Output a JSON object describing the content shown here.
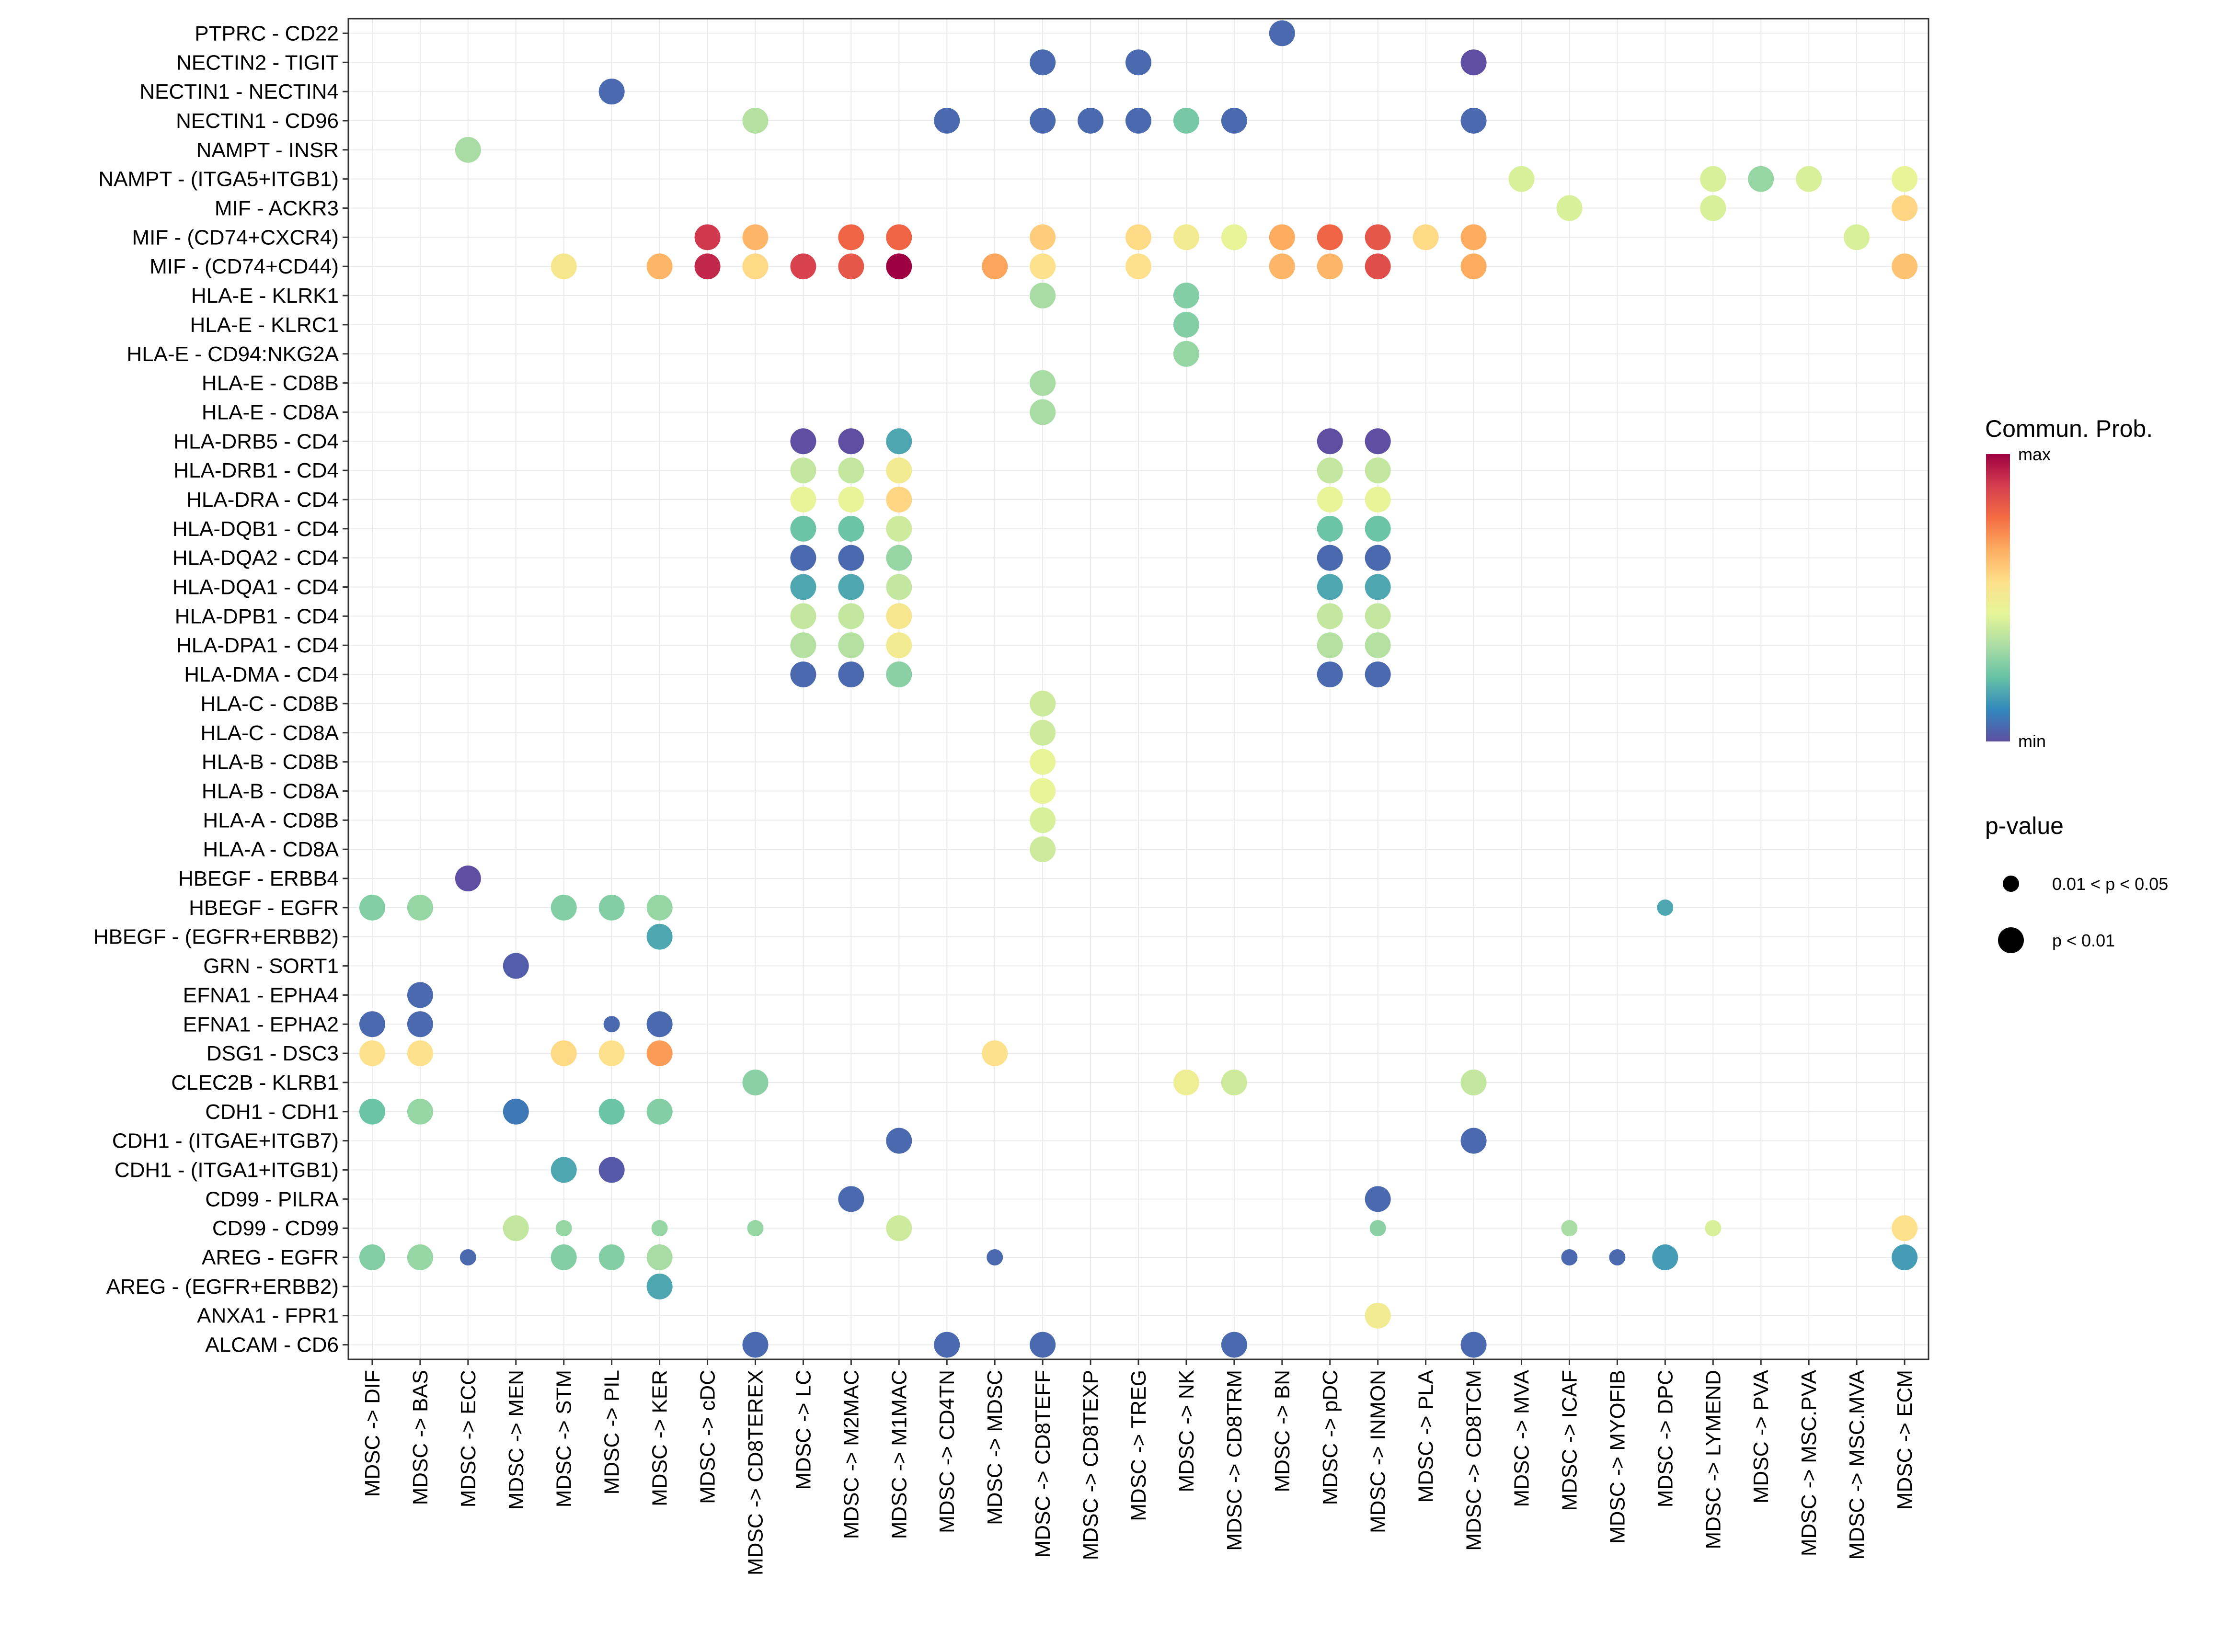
{
  "chart_data": {
    "type": "scatter",
    "subtype": "dot-matrix",
    "title": "",
    "xlabel": "",
    "ylabel": "",
    "grid": true,
    "x_categories": [
      "MDSC -> DIF",
      "MDSC -> BAS",
      "MDSC -> ECC",
      "MDSC -> MEN",
      "MDSC -> STM",
      "MDSC -> PIL",
      "MDSC -> KER",
      "MDSC -> cDC",
      "MDSC -> CD8TEREX",
      "MDSC -> LC",
      "MDSC -> M2MAC",
      "MDSC -> M1MAC",
      "MDSC -> CD4TN",
      "MDSC -> MDSC",
      "MDSC -> CD8TEFF",
      "MDSC -> CD8TEXP",
      "MDSC -> TREG",
      "MDSC -> NK",
      "MDSC -> CD8TRM",
      "MDSC -> BN",
      "MDSC -> pDC",
      "MDSC -> INMON",
      "MDSC -> PLA",
      "MDSC -> CD8TCM",
      "MDSC -> MVA",
      "MDSC -> ICAF",
      "MDSC -> MYOFIB",
      "MDSC -> DPC",
      "MDSC -> LYMEND",
      "MDSC -> PVA",
      "MDSC -> MSC.PVA",
      "MDSC -> MSC.MVA",
      "MDSC -> ECM"
    ],
    "y_categories": [
      "PTPRC - CD22",
      "NECTIN2 - TIGIT",
      "NECTIN1 - NECTIN4",
      "NECTIN1 - CD96",
      "NAMPT - INSR",
      "NAMPT - (ITGA5+ITGB1)",
      "MIF - ACKR3",
      "MIF - (CD74+CXCR4)",
      "MIF - (CD74+CD44)",
      "HLA-E - KLRK1",
      "HLA-E - KLRC1",
      "HLA-E - CD94:NKG2A",
      "HLA-E - CD8B",
      "HLA-E - CD8A",
      "HLA-DRB5 - CD4",
      "HLA-DRB1 - CD4",
      "HLA-DRA - CD4",
      "HLA-DQB1 - CD4",
      "HLA-DQA2 - CD4",
      "HLA-DQA1 - CD4",
      "HLA-DPB1 - CD4",
      "HLA-DPA1 - CD4",
      "HLA-DMA - CD4",
      "HLA-C - CD8B",
      "HLA-C - CD8A",
      "HLA-B - CD8B",
      "HLA-B - CD8A",
      "HLA-A - CD8B",
      "HLA-A - CD8A",
      "HBEGF - ERBB4",
      "HBEGF - EGFR",
      "HBEGF - (EGFR+ERBB2)",
      "GRN - SORT1",
      "EFNA1 - EPHA4",
      "EFNA1 - EPHA2",
      "DSG1 - DSC3",
      "CLEC2B - KLRB1",
      "CDH1 - CDH1",
      "CDH1 - (ITGAE+ITGB7)",
      "CDH1 - (ITGA1+ITGB1)",
      "CD99 - PILRA",
      "CD99 - CD99",
      "AREG - EGFR",
      "AREG - (EGFR+ERBB2)",
      "ANXA1 - FPR1",
      "ALCAM - CD6"
    ],
    "point_fields": [
      "x_index",
      "y_index",
      "commun_prob_scaled",
      "pvalue_class"
    ],
    "points": [
      [
        19,
        0,
        0.05,
        1
      ],
      [
        14,
        1,
        0.05,
        1
      ],
      [
        16,
        1,
        0.05,
        1
      ],
      [
        23,
        1,
        0.0,
        1
      ],
      [
        5,
        2,
        0.05,
        1
      ],
      [
        8,
        3,
        0.35,
        1
      ],
      [
        12,
        3,
        0.05,
        1
      ],
      [
        14,
        3,
        0.05,
        1
      ],
      [
        15,
        3,
        0.05,
        1
      ],
      [
        16,
        3,
        0.05,
        1
      ],
      [
        17,
        3,
        0.25,
        1
      ],
      [
        18,
        3,
        0.05,
        1
      ],
      [
        23,
        3,
        0.05,
        1
      ],
      [
        2,
        4,
        0.33,
        1
      ],
      [
        24,
        5,
        0.42,
        1
      ],
      [
        28,
        5,
        0.42,
        1
      ],
      [
        29,
        5,
        0.3,
        1
      ],
      [
        30,
        5,
        0.42,
        1
      ],
      [
        32,
        5,
        0.45,
        1
      ],
      [
        25,
        6,
        0.42,
        1
      ],
      [
        28,
        6,
        0.42,
        1
      ],
      [
        32,
        6,
        0.58,
        1
      ],
      [
        7,
        7,
        0.9,
        1
      ],
      [
        8,
        7,
        0.65,
        1
      ],
      [
        10,
        7,
        0.8,
        1
      ],
      [
        11,
        7,
        0.8,
        1
      ],
      [
        14,
        7,
        0.6,
        1
      ],
      [
        16,
        7,
        0.57,
        1
      ],
      [
        17,
        7,
        0.5,
        1
      ],
      [
        18,
        7,
        0.45,
        1
      ],
      [
        19,
        7,
        0.67,
        1
      ],
      [
        20,
        7,
        0.8,
        1
      ],
      [
        21,
        7,
        0.83,
        1
      ],
      [
        22,
        7,
        0.57,
        1
      ],
      [
        23,
        7,
        0.67,
        1
      ],
      [
        31,
        7,
        0.42,
        1
      ],
      [
        6,
        8,
        0.65,
        1
      ],
      [
        7,
        8,
        0.93,
        1
      ],
      [
        8,
        8,
        0.57,
        1
      ],
      [
        9,
        8,
        0.88,
        1
      ],
      [
        10,
        8,
        0.83,
        1
      ],
      [
        11,
        8,
        1.0,
        1
      ],
      [
        13,
        8,
        0.68,
        1
      ],
      [
        14,
        8,
        0.55,
        1
      ],
      [
        16,
        8,
        0.55,
        1
      ],
      [
        19,
        8,
        0.65,
        1
      ],
      [
        20,
        8,
        0.65,
        1
      ],
      [
        21,
        8,
        0.85,
        1
      ],
      [
        23,
        8,
        0.67,
        1
      ],
      [
        32,
        8,
        0.62,
        1
      ],
      [
        4,
        8,
        0.52,
        1
      ],
      [
        14,
        9,
        0.33,
        1
      ],
      [
        17,
        9,
        0.27,
        1
      ],
      [
        17,
        10,
        0.27,
        1
      ],
      [
        17,
        11,
        0.3,
        1
      ],
      [
        14,
        12,
        0.33,
        1
      ],
      [
        14,
        13,
        0.33,
        1
      ],
      [
        9,
        14,
        0.0,
        1
      ],
      [
        10,
        14,
        0.0,
        1
      ],
      [
        11,
        14,
        0.17,
        1
      ],
      [
        20,
        14,
        0.0,
        1
      ],
      [
        21,
        14,
        0.0,
        1
      ],
      [
        9,
        15,
        0.38,
        1
      ],
      [
        10,
        15,
        0.38,
        1
      ],
      [
        11,
        15,
        0.5,
        1
      ],
      [
        20,
        15,
        0.38,
        1
      ],
      [
        21,
        15,
        0.38,
        1
      ],
      [
        9,
        16,
        0.45,
        1
      ],
      [
        10,
        16,
        0.45,
        1
      ],
      [
        11,
        16,
        0.58,
        1
      ],
      [
        20,
        16,
        0.45,
        1
      ],
      [
        21,
        16,
        0.45,
        1
      ],
      [
        9,
        17,
        0.23,
        1
      ],
      [
        10,
        17,
        0.23,
        1
      ],
      [
        11,
        17,
        0.4,
        1
      ],
      [
        20,
        17,
        0.23,
        1
      ],
      [
        21,
        17,
        0.23,
        1
      ],
      [
        9,
        18,
        0.05,
        1
      ],
      [
        10,
        18,
        0.05,
        1
      ],
      [
        11,
        18,
        0.3,
        1
      ],
      [
        20,
        18,
        0.05,
        1
      ],
      [
        21,
        18,
        0.05,
        1
      ],
      [
        9,
        19,
        0.17,
        1
      ],
      [
        10,
        19,
        0.17,
        1
      ],
      [
        11,
        19,
        0.38,
        1
      ],
      [
        20,
        19,
        0.17,
        1
      ],
      [
        21,
        19,
        0.17,
        1
      ],
      [
        9,
        20,
        0.38,
        1
      ],
      [
        10,
        20,
        0.38,
        1
      ],
      [
        11,
        20,
        0.52,
        1
      ],
      [
        20,
        20,
        0.38,
        1
      ],
      [
        21,
        20,
        0.38,
        1
      ],
      [
        9,
        21,
        0.35,
        1
      ],
      [
        10,
        21,
        0.35,
        1
      ],
      [
        11,
        21,
        0.5,
        1
      ],
      [
        20,
        21,
        0.35,
        1
      ],
      [
        21,
        21,
        0.35,
        1
      ],
      [
        9,
        22,
        0.05,
        1
      ],
      [
        10,
        22,
        0.05,
        1
      ],
      [
        11,
        22,
        0.28,
        1
      ],
      [
        20,
        22,
        0.05,
        1
      ],
      [
        21,
        22,
        0.05,
        1
      ],
      [
        14,
        23,
        0.4,
        1
      ],
      [
        14,
        24,
        0.4,
        1
      ],
      [
        14,
        25,
        0.45,
        1
      ],
      [
        14,
        26,
        0.45,
        1
      ],
      [
        14,
        27,
        0.42,
        1
      ],
      [
        14,
        28,
        0.4,
        1
      ],
      [
        2,
        29,
        0.0,
        1
      ],
      [
        0,
        30,
        0.27,
        1
      ],
      [
        1,
        30,
        0.3,
        1
      ],
      [
        4,
        30,
        0.27,
        1
      ],
      [
        5,
        30,
        0.27,
        1
      ],
      [
        6,
        30,
        0.3,
        1
      ],
      [
        27,
        30,
        0.17,
        0
      ],
      [
        6,
        31,
        0.17,
        1
      ],
      [
        3,
        32,
        0.03,
        1
      ],
      [
        1,
        33,
        0.05,
        1
      ],
      [
        0,
        34,
        0.05,
        1
      ],
      [
        1,
        34,
        0.05,
        1
      ],
      [
        5,
        34,
        0.05,
        0
      ],
      [
        6,
        34,
        0.05,
        1
      ],
      [
        0,
        35,
        0.55,
        1
      ],
      [
        1,
        35,
        0.55,
        1
      ],
      [
        4,
        35,
        0.57,
        1
      ],
      [
        5,
        35,
        0.55,
        1
      ],
      [
        6,
        35,
        0.7,
        1
      ],
      [
        13,
        35,
        0.55,
        1
      ],
      [
        8,
        36,
        0.28,
        1
      ],
      [
        17,
        36,
        0.48,
        1
      ],
      [
        18,
        36,
        0.4,
        1
      ],
      [
        23,
        36,
        0.38,
        1
      ],
      [
        0,
        37,
        0.23,
        1
      ],
      [
        1,
        37,
        0.3,
        1
      ],
      [
        3,
        37,
        0.08,
        1
      ],
      [
        5,
        37,
        0.23,
        1
      ],
      [
        6,
        37,
        0.27,
        1
      ],
      [
        11,
        38,
        0.05,
        1
      ],
      [
        23,
        38,
        0.05,
        1
      ],
      [
        4,
        39,
        0.17,
        1
      ],
      [
        5,
        39,
        0.02,
        1
      ],
      [
        10,
        40,
        0.05,
        1
      ],
      [
        21,
        40,
        0.05,
        1
      ],
      [
        3,
        41,
        0.38,
        1
      ],
      [
        4,
        41,
        0.3,
        0
      ],
      [
        6,
        41,
        0.3,
        0
      ],
      [
        8,
        41,
        0.3,
        0
      ],
      [
        11,
        41,
        0.4,
        1
      ],
      [
        21,
        41,
        0.28,
        0
      ],
      [
        25,
        41,
        0.33,
        0
      ],
      [
        28,
        41,
        0.42,
        0
      ],
      [
        32,
        41,
        0.55,
        1
      ],
      [
        0,
        42,
        0.27,
        1
      ],
      [
        1,
        42,
        0.3,
        1
      ],
      [
        2,
        42,
        0.05,
        0
      ],
      [
        4,
        42,
        0.27,
        1
      ],
      [
        5,
        42,
        0.27,
        1
      ],
      [
        6,
        42,
        0.33,
        1
      ],
      [
        13,
        42,
        0.05,
        0
      ],
      [
        25,
        42,
        0.05,
        0
      ],
      [
        26,
        42,
        0.05,
        0
      ],
      [
        27,
        42,
        0.15,
        1
      ],
      [
        32,
        42,
        0.15,
        1
      ],
      [
        6,
        43,
        0.17,
        1
      ],
      [
        21,
        44,
        0.5,
        1
      ],
      [
        8,
        45,
        0.05,
        1
      ],
      [
        12,
        45,
        0.05,
        1
      ],
      [
        14,
        45,
        0.05,
        1
      ],
      [
        18,
        45,
        0.05,
        1
      ],
      [
        23,
        45,
        0.05,
        1
      ]
    ],
    "color_legend": {
      "title": "Commun. Prob.",
      "max_label": "max",
      "min_label": "min",
      "colormap": [
        "#5e4fa2",
        "#3288bd",
        "#66c2a5",
        "#abdda4",
        "#e6f598",
        "#fee08b",
        "#fdae61",
        "#f46d43",
        "#d53e4f",
        "#9e0142"
      ]
    },
    "size_legend": {
      "title": "p-value",
      "entries": [
        "0.01 < p < 0.05",
        "p < 0.01"
      ]
    }
  }
}
